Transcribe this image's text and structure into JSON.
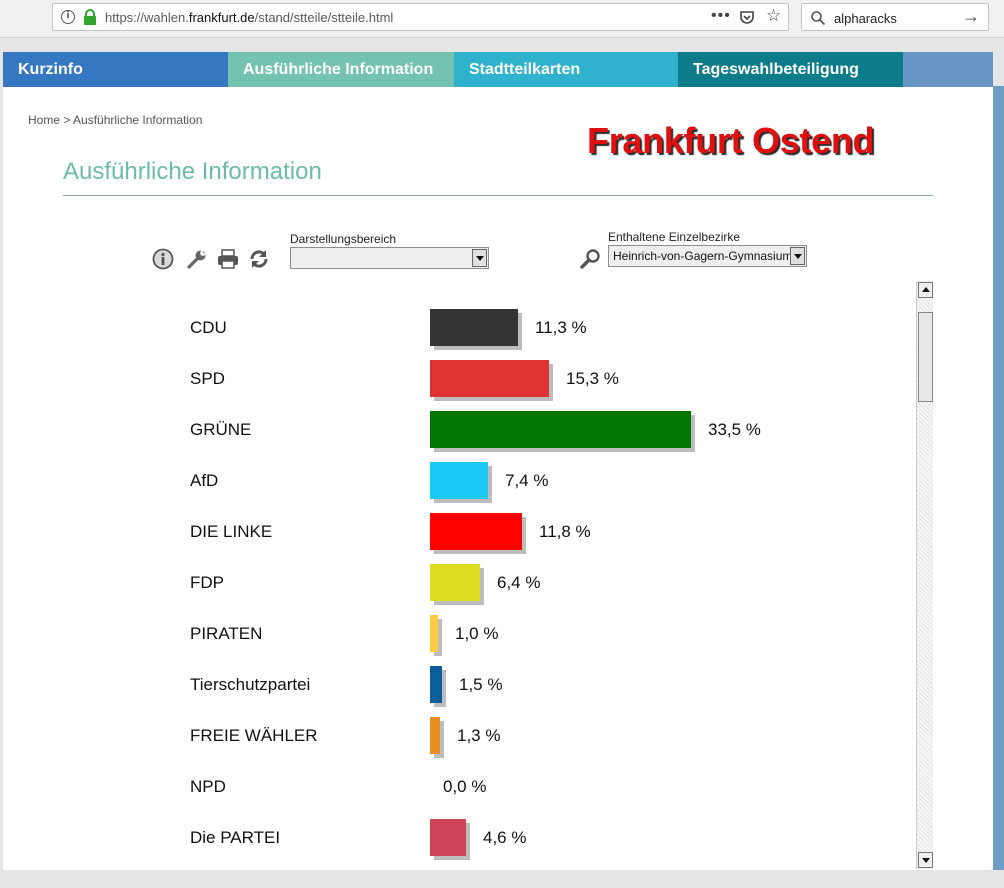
{
  "browser": {
    "url_prefix": "https://wahlen.",
    "url_domain": "frankfurt.de",
    "url_path": "/stand/stteile/stteile.html",
    "search_value": "alpharacks",
    "menu_dots": "•••",
    "star": "☆",
    "go_arrow": "→"
  },
  "nav": {
    "items": [
      {
        "label": "Kurzinfo",
        "color": "#3677c2"
      },
      {
        "label": "Ausführliche Information",
        "color": "#74c2b0"
      },
      {
        "label": "Stadtteilkarten",
        "color": "#2fb3cc"
      },
      {
        "label": "Tageswahlbeteiligung",
        "color": "#0c7c8a"
      }
    ]
  },
  "breadcrumb": "Home > Ausführliche Information",
  "district_title": "Frankfurt Ostend",
  "section_title": "Ausführliche Information",
  "controls": {
    "range_label": "Darstellungsbereich",
    "range_value": "",
    "district_label": "Enthaltene Einzelbezirke",
    "district_value": "Heinrich-von-Gagern-Gymnasium"
  },
  "icons": [
    "info-icon",
    "wrench-icon",
    "printer-icon",
    "refresh-icon",
    "magnifier-icon"
  ],
  "chart_data": {
    "type": "bar",
    "orientation": "horizontal",
    "value_unit": "%",
    "categories": [
      "CDU",
      "SPD",
      "GRÜNE",
      "AfD",
      "DIE LINKE",
      "FDP",
      "PIRATEN",
      "Tierschutzpartei",
      "FREIE WÄHLER",
      "NPD",
      "Die PARTEI"
    ],
    "values": [
      11.3,
      15.3,
      33.5,
      7.4,
      11.8,
      6.4,
      1.0,
      1.5,
      1.3,
      0.0,
      4.6
    ],
    "value_labels": [
      "11,3 %",
      "15,3 %",
      "33,5 %",
      "7,4 %",
      "11,8 %",
      "6,4 %",
      "1,0 %",
      "1,5 %",
      "1,3 %",
      "0,0 %",
      "4,6 %"
    ],
    "colors": [
      "#333333",
      "#dd3333",
      "#007700",
      "#1ec8f5",
      "#ff0000",
      "#dedd20",
      "#fccc44",
      "#0b5e99",
      "#e88e20",
      "#8b5a2b",
      "#d0445a"
    ]
  }
}
